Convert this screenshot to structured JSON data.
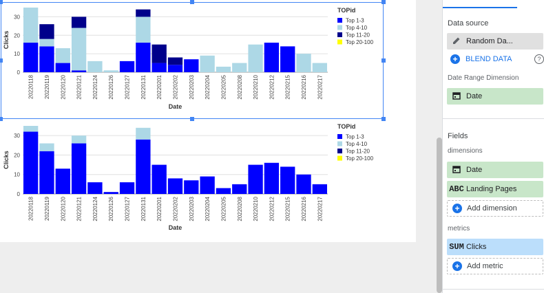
{
  "charts": [
    {
      "chart_data": {
        "type": "bar",
        "stacked": true,
        "ylabel": "Clicks",
        "xlabel": "Date",
        "legend_title": "TOPid",
        "legend_position": "right",
        "yticks": [
          0,
          10,
          20,
          30
        ],
        "ylim": [
          0,
          35
        ],
        "categories": [
          "20220118",
          "20220119",
          "20220120",
          "20220121",
          "20220124",
          "20220126",
          "20220127",
          "20220131",
          "20220201",
          "20220202",
          "20220203",
          "20220204",
          "20220205",
          "20220208",
          "20220210",
          "20220212",
          "20220215",
          "20220216",
          "20220217"
        ],
        "series": [
          {
            "name": "Top 1-3",
            "color": "#0000ff",
            "values": [
              16,
              14,
              5,
              1,
              0,
              0,
              6,
              16,
              5,
              4,
              7,
              0,
              0,
              0,
              0,
              16,
              14,
              0,
              0
            ]
          },
          {
            "name": "Top 4-10",
            "color": "#add8e6",
            "values": [
              19,
              4,
              8,
              23,
              6,
              1,
              0,
              14,
              0,
              0,
              0,
              9,
              3,
              5,
              15,
              0,
              0,
              10,
              5
            ]
          },
          {
            "name": "Top 11-20",
            "color": "#00008b",
            "values": [
              0,
              8,
              0,
              6,
              0,
              0,
              0,
              4,
              10,
              4,
              0,
              0,
              0,
              0,
              0,
              0,
              0,
              0,
              0
            ]
          },
          {
            "name": "Top 20-100",
            "color": "#ffff00",
            "values": [
              0,
              0,
              0,
              0,
              0,
              0,
              0,
              0,
              0,
              0,
              0,
              0,
              0,
              0,
              0,
              0,
              0,
              0,
              0
            ]
          }
        ]
      }
    },
    {
      "chart_data": {
        "type": "bar",
        "stacked": true,
        "ylabel": "Clicks",
        "xlabel": "Date",
        "legend_title": "TOPid",
        "legend_position": "right",
        "yticks": [
          0,
          10,
          20,
          30
        ],
        "ylim": [
          0,
          35
        ],
        "categories": [
          "20220118",
          "20220119",
          "20220120",
          "20220121",
          "20220124",
          "20220126",
          "20220127",
          "20220131",
          "20220201",
          "20220202",
          "20220203",
          "20220204",
          "20220205",
          "20220208",
          "20220210",
          "20220212",
          "20220215",
          "20220216",
          "20220217"
        ],
        "series": [
          {
            "name": "Top 1-3",
            "color": "#0000ff",
            "values": [
              32,
              22,
              13,
              26,
              6,
              1,
              6,
              28,
              15,
              8,
              7,
              9,
              3,
              5,
              15,
              16,
              14,
              10,
              5
            ]
          },
          {
            "name": "Top 4-10",
            "color": "#add8e6",
            "values": [
              3,
              4,
              0,
              4,
              0,
              0,
              0,
              6,
              0,
              0,
              0,
              0,
              0,
              0,
              0,
              0,
              0,
              0,
              0
            ]
          },
          {
            "name": "Top 11-20",
            "color": "#00008b",
            "values": [
              0,
              0,
              0,
              0,
              0,
              0,
              0,
              0,
              0,
              0,
              0,
              0,
              0,
              0,
              0,
              0,
              0,
              0,
              0
            ]
          },
          {
            "name": "Top 20-100",
            "color": "#ffff00",
            "values": [
              0,
              0,
              0,
              0,
              0,
              0,
              0,
              0,
              0,
              0,
              0,
              0,
              0,
              0,
              0,
              0,
              0,
              0,
              0
            ]
          }
        ]
      }
    }
  ],
  "panel": {
    "data_source_title": "Data source",
    "data_source_name": "Random Da...",
    "data_source_icon": "pencil-icon",
    "blend_label": "BLEND DATA",
    "help_icon": "help-icon",
    "date_range_title": "Date Range Dimension",
    "date_range_field": "Date",
    "fields_title": "Fields",
    "dimensions_title": "dimensions",
    "dimensions": [
      {
        "badge": "calendar-icon",
        "label": "Date"
      },
      {
        "badge": "ABC",
        "label": "Landing Pages"
      }
    ],
    "add_dimension_label": "Add dimension",
    "metrics_title": "metrics",
    "metrics": [
      {
        "badge": "SUM",
        "label": "Clicks"
      }
    ],
    "add_metric_label": "Add metric"
  }
}
